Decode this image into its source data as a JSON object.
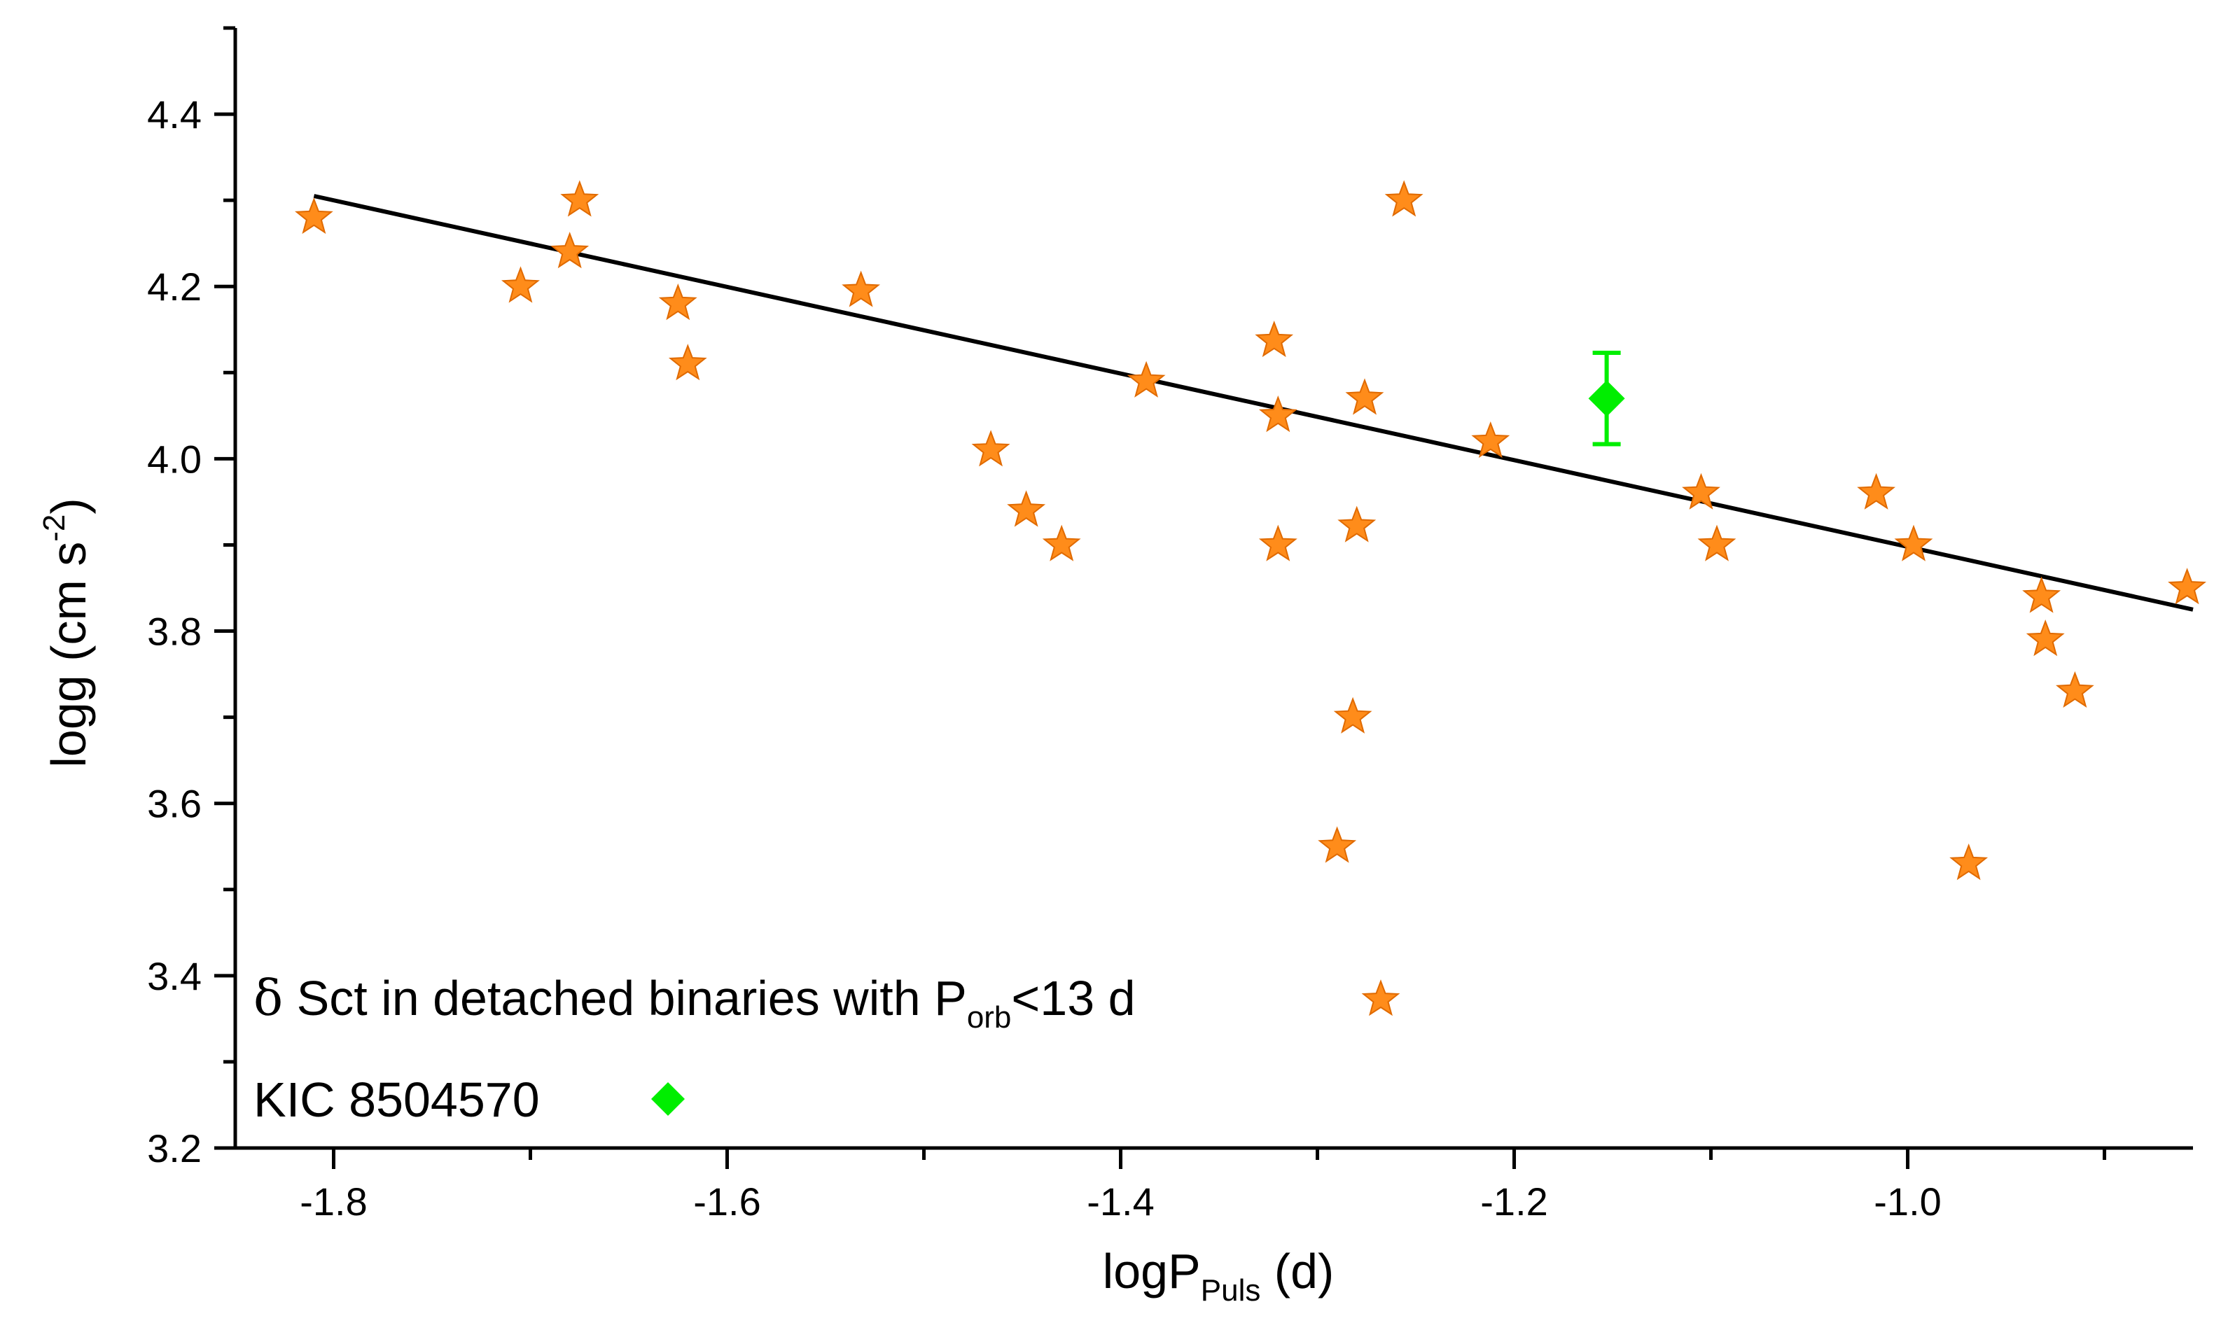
{
  "chart_data": {
    "type": "scatter",
    "title": "",
    "xlabel": {
      "main": "logP",
      "sub": "Puls",
      "tail": " (d)"
    },
    "ylabel": {
      "main": "logg (cm s",
      "sup": "-2",
      "tail": ")"
    },
    "xlim": [
      -1.85,
      -0.855
    ],
    "ylim": [
      3.2,
      4.5
    ],
    "x_ticks": [
      -1.8,
      -1.6,
      -1.4,
      -1.2,
      -1.0
    ],
    "x_tick_labels": [
      "-1.8",
      "-1.6",
      "-1.4",
      "-1.2",
      "-1.0"
    ],
    "y_ticks": [
      3.2,
      3.4,
      3.6,
      3.8,
      4.0,
      4.2,
      4.4
    ],
    "y_tick_labels": [
      "3.2",
      "3.4",
      "3.6",
      "3.8",
      "4.0",
      "4.2",
      "4.4"
    ],
    "grid": false,
    "legend": {
      "placement": "bottom-left",
      "entries": [
        {
          "symbol": "star",
          "delta": "δ",
          "text": " Sct in detached binaries with P",
          "sub": "orb",
          "tail": "<13 d"
        },
        {
          "symbol": "diamond",
          "text": "KIC 8504570"
        }
      ]
    },
    "series": [
      {
        "name": "δ Sct in detached binaries with Porb<13 d",
        "marker": "star",
        "color": "#ff8c1a",
        "x": [
          -1.81,
          -1.705,
          -1.68,
          -1.675,
          -1.625,
          -1.62,
          -1.532,
          -1.466,
          -1.448,
          -1.43,
          -1.387,
          -1.322,
          -1.32,
          -1.32,
          -1.276,
          -1.28,
          -1.282,
          -1.29,
          -1.256,
          -1.212,
          -1.105,
          -1.097,
          -1.016,
          -0.997,
          -0.969,
          -0.932,
          -0.93,
          -0.915,
          -0.858
        ],
        "y": [
          4.28,
          4.2,
          4.24,
          4.3,
          4.18,
          4.11,
          4.195,
          4.01,
          3.94,
          3.9,
          4.09,
          4.137,
          4.05,
          3.9,
          4.07,
          3.922,
          3.7,
          3.55,
          4.3,
          4.02,
          3.96,
          3.9,
          3.96,
          3.9,
          3.53,
          3.84,
          3.79,
          3.73,
          3.85
        ]
      },
      {
        "name": "KIC 8504570",
        "marker": "diamond",
        "color": "#00ee00",
        "x": [
          -1.153
        ],
        "y": [
          4.07
        ],
        "yerr": [
          0.053
        ]
      }
    ],
    "fit_line": {
      "name": "linear fit",
      "color": "#000000",
      "x": [
        -1.81,
        -0.855
      ],
      "y": [
        4.305,
        3.825
      ]
    }
  }
}
